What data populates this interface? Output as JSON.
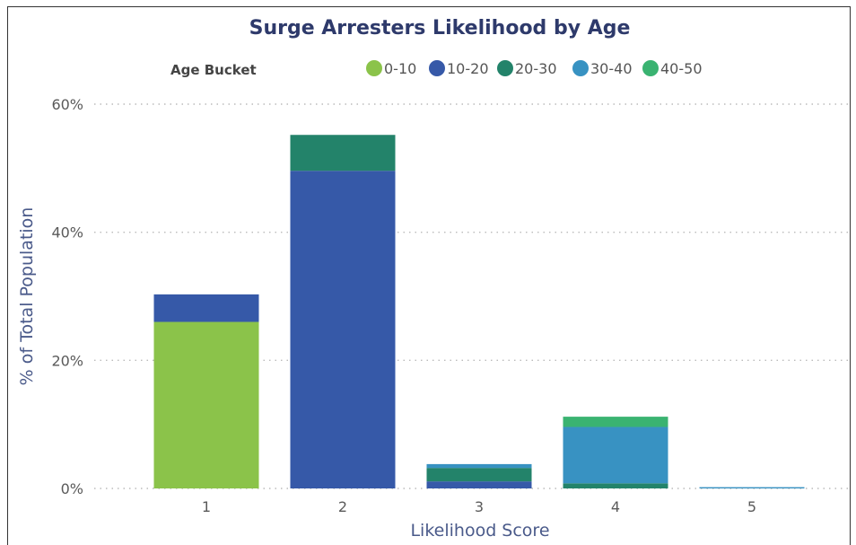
{
  "chart_data": {
    "type": "bar",
    "stacked": true,
    "title": "Surge Arresters Likelihood by Age",
    "xlabel": "Likelihood Score",
    "ylabel": "% of Total Population",
    "categories": [
      "1",
      "2",
      "3",
      "4",
      "5"
    ],
    "ylim": [
      0,
      60
    ],
    "yticks": [
      0,
      20,
      40,
      60
    ],
    "ytick_labels": [
      "0%",
      "20%",
      "40%",
      "60%"
    ],
    "grid": "horizontal dotted",
    "legend": {
      "title": "Age Bucket",
      "placement": "top"
    },
    "series": [
      {
        "name": "0-10",
        "color": "#8bc34a",
        "values": [
          26.0,
          0,
          0,
          0,
          0
        ]
      },
      {
        "name": "10-20",
        "color": "#3659a8",
        "values": [
          4.3,
          49.6,
          1.1,
          0,
          0
        ]
      },
      {
        "name": "20-30",
        "color": "#23836a",
        "values": [
          0,
          5.6,
          2.1,
          0.8,
          0
        ]
      },
      {
        "name": "30-40",
        "color": "#3892c2",
        "values": [
          0,
          0,
          0.6,
          8.8,
          0.2
        ]
      },
      {
        "name": "40-50",
        "color": "#3ab371",
        "values": [
          0,
          0,
          0,
          1.6,
          0
        ]
      }
    ]
  },
  "colors": {
    "title": "#2e3a6b",
    "axis_text": "#5a5a5a",
    "axis_label": "#4a5a8a",
    "grid": "#bbbbbb"
  }
}
